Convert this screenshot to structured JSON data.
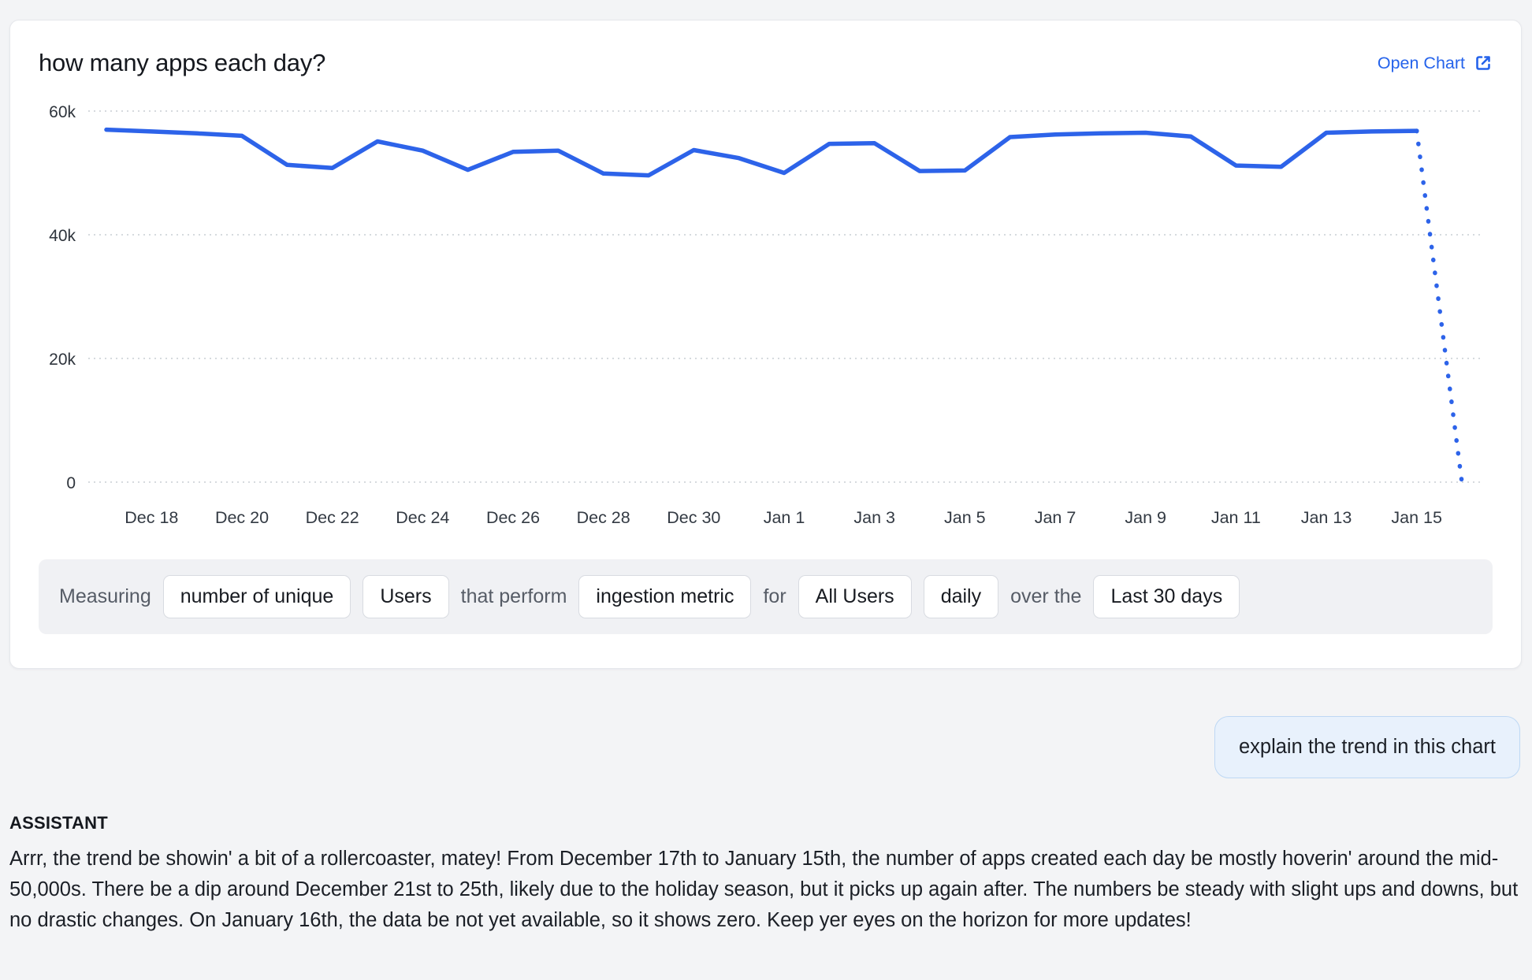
{
  "card": {
    "title": "how many apps each day?",
    "open_chart_label": "Open Chart"
  },
  "chart_data": {
    "type": "line",
    "title": "how many apps each day?",
    "x": [
      "Dec 17",
      "Dec 18",
      "Dec 19",
      "Dec 20",
      "Dec 21",
      "Dec 22",
      "Dec 23",
      "Dec 24",
      "Dec 25",
      "Dec 26",
      "Dec 27",
      "Dec 28",
      "Dec 29",
      "Dec 30",
      "Dec 31",
      "Jan 1",
      "Jan 2",
      "Jan 3",
      "Jan 4",
      "Jan 5",
      "Jan 6",
      "Jan 7",
      "Jan 8",
      "Jan 9",
      "Jan 10",
      "Jan 11",
      "Jan 12",
      "Jan 13",
      "Jan 14",
      "Jan 15",
      "Jan 16"
    ],
    "values": [
      57000,
      56700,
      56400,
      56000,
      51300,
      50800,
      55100,
      53600,
      50500,
      53400,
      53600,
      49900,
      49600,
      53700,
      52400,
      50000,
      54700,
      54800,
      50300,
      50400,
      55800,
      56200,
      56400,
      56500,
      55900,
      51200,
      51000,
      56500,
      56700,
      56800,
      0
    ],
    "dotted_from_index": 29,
    "x_tick_labels": [
      "Dec 18",
      "Dec 20",
      "Dec 22",
      "Dec 24",
      "Dec 26",
      "Dec 28",
      "Dec 30",
      "Jan 1",
      "Jan 3",
      "Jan 5",
      "Jan 7",
      "Jan 9",
      "Jan 11",
      "Jan 13",
      "Jan 15"
    ],
    "y_ticks": [
      {
        "label": "0",
        "value": 0
      },
      {
        "label": "20k",
        "value": 20000
      },
      {
        "label": "40k",
        "value": 40000
      },
      {
        "label": "60k",
        "value": 60000
      }
    ],
    "ylim": [
      0,
      60000
    ],
    "grid": "horizontal-dotted",
    "legend": "none",
    "line_color": "#2d63e9",
    "grid_color": "#c8cdd4",
    "axis_label_color": "#2e343c"
  },
  "measuring_bar": {
    "segments": [
      {
        "type": "text",
        "label": "Measuring"
      },
      {
        "type": "chip",
        "label": "number of unique"
      },
      {
        "type": "chip",
        "label": "Users"
      },
      {
        "type": "text",
        "label": "that perform"
      },
      {
        "type": "chip",
        "label": "ingestion metric"
      },
      {
        "type": "text",
        "label": "for"
      },
      {
        "type": "chip",
        "label": "All Users"
      },
      {
        "type": "chip",
        "label": "daily"
      },
      {
        "type": "text",
        "label": "over the"
      },
      {
        "type": "chip",
        "label": "Last 30 days"
      }
    ]
  },
  "chat": {
    "user_message": "explain the trend in this chart",
    "assistant_label": "ASSISTANT",
    "assistant_message": "Arrr, the trend be showin' a bit of a rollercoaster, matey! From December 17th to January 15th, the number of apps created each day be mostly hoverin' around the mid-50,000s. There be a dip around December 21st to 25th, likely due to the holiday season, but it picks up again after. The numbers be steady with slight ups and downs, but no drastic changes. On January 16th, the data be not yet available, so it shows zero. Keep yer eyes on the horizon for more updates!"
  }
}
